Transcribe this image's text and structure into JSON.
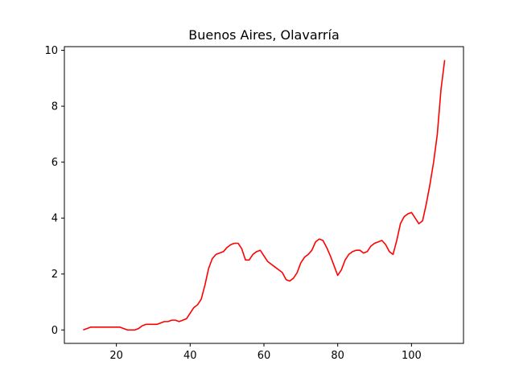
{
  "chart_data": {
    "type": "line",
    "title": "Buenos Aires, Olavarría",
    "xlabel": "",
    "ylabel": "",
    "xlim": [
      5.9,
      114.1
    ],
    "ylim": [
      -0.48,
      10.13
    ],
    "xticks": [
      20,
      40,
      60,
      80,
      100
    ],
    "yticks": [
      0,
      2,
      4,
      6,
      8,
      10
    ],
    "grid": false,
    "line_color": "#ff0000",
    "series": [
      {
        "x": [
          11,
          12,
          13,
          14,
          15,
          16,
          17,
          18,
          19,
          20,
          21,
          22,
          23,
          24,
          25,
          26,
          27,
          28,
          29,
          30,
          31,
          32,
          33,
          34,
          35,
          36,
          37,
          38,
          39,
          40,
          41,
          42,
          43,
          44,
          45,
          46,
          47,
          48,
          49,
          50,
          51,
          52,
          53,
          54,
          55,
          56,
          57,
          58,
          59,
          60,
          61,
          62,
          63,
          64,
          65,
          66,
          67,
          68,
          69,
          70,
          71,
          72,
          73,
          74,
          75,
          76,
          77,
          78,
          79,
          80,
          81,
          82,
          83,
          84,
          85,
          86,
          87,
          88,
          89,
          90,
          91,
          92,
          93,
          94,
          95,
          96,
          97,
          98,
          99,
          100,
          101,
          102,
          103,
          104,
          105,
          106,
          107,
          108,
          109
        ],
        "y": [
          0,
          0.05,
          0.1,
          0.1,
          0.1,
          0.1,
          0.1,
          0.1,
          0.1,
          0.1,
          0.1,
          0.05,
          0,
          0,
          0,
          0.05,
          0.15,
          0.2,
          0.2,
          0.2,
          0.2,
          0.25,
          0.3,
          0.3,
          0.35,
          0.35,
          0.3,
          0.35,
          0.4,
          0.6,
          0.8,
          0.9,
          1.1,
          1.6,
          2.2,
          2.55,
          2.7,
          2.75,
          2.8,
          2.95,
          3.05,
          3.1,
          3.1,
          2.9,
          2.5,
          2.5,
          2.7,
          2.8,
          2.85,
          2.65,
          2.45,
          2.35,
          2.25,
          2.15,
          2.05,
          1.8,
          1.75,
          1.85,
          2.05,
          2.4,
          2.6,
          2.7,
          2.85,
          3.15,
          3.25,
          3.2,
          2.95,
          2.65,
          2.3,
          1.95,
          2.15,
          2.5,
          2.7,
          2.8,
          2.85,
          2.85,
          2.75,
          2.8,
          3.0,
          3.1,
          3.15,
          3.2,
          3.05,
          2.8,
          2.7,
          3.2,
          3.8,
          4.05,
          4.15,
          4.2,
          4.0,
          3.8,
          3.9,
          4.5,
          5.2,
          6.0,
          7.0,
          8.6,
          9.65
        ]
      }
    ]
  }
}
